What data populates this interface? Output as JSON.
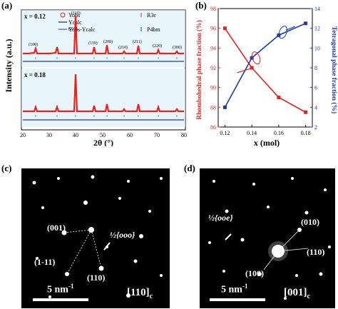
{
  "figure": {
    "panels": {
      "a": {
        "label": "(a)",
        "ylabel": "Intensity (a.u.)",
        "xlabel": "2θ (°)",
        "x_ticks": [
          "20",
          "30",
          "40",
          "50",
          "60",
          "70",
          "80"
        ],
        "legend": [
          "Yobs",
          "Ycalc",
          "Yobs-Ycalc",
          "R3c",
          "P4bm"
        ],
        "subpanel_labels": [
          "x = 0.12",
          "x = 0.18"
        ],
        "peak_labels": [
          "(100)",
          "(110)",
          "(111)",
          "(200)",
          "(210)",
          "(211)",
          "(220)",
          "(300)"
        ]
      },
      "b": {
        "label": "(b)",
        "ylabel_left": "Rhombohedral phase fraction (%)",
        "ylabel_right": "Tetragonal phase fraction (%)",
        "xlabel": "x (mol)",
        "colors": {
          "left": "#e8231f",
          "right": "#1e3aa8"
        }
      },
      "c": {
        "label": "(c)",
        "spots": [
          "(001)",
          "(1-11)",
          "(110)"
        ],
        "half_label": "½{ooo}",
        "scale": "5 nm",
        "scale_sup": "-1",
        "zone": "[110]",
        "zone_sub": "c"
      },
      "d": {
        "label": "(d)",
        "spots": [
          "(010)",
          "(110)",
          "(100)"
        ],
        "half_label": "½{ooe}",
        "scale": "5 nm",
        "scale_sup": "-1",
        "zone": "[001]",
        "zone_sub": "c"
      }
    }
  },
  "chart_data": [
    {
      "type": "line",
      "title": "",
      "xlabel": "x (mol)",
      "ylabel": "Rhombohedral phase fraction (%)",
      "x": [
        0.12,
        0.14,
        0.16,
        0.18
      ],
      "xlim": [
        0.115,
        0.185
      ],
      "x_ticks": [
        0.12,
        0.14,
        0.16,
        0.18
      ],
      "series": [
        {
          "axis": "left",
          "color": "#e8231f",
          "values": [
            96.0,
            92.0,
            89.0,
            87.5
          ]
        },
        {
          "axis": "right",
          "color": "#1e3aa8",
          "values": [
            4.0,
            9.0,
            11.3,
            12.5
          ]
        }
      ],
      "ylim_left": [
        86,
        98
      ],
      "yticks_left": [
        86,
        88,
        90,
        92,
        94,
        96,
        98
      ],
      "ylim_right": [
        2,
        14
      ],
      "yticks_right": [
        2,
        4,
        6,
        8,
        10,
        12,
        14
      ]
    }
  ]
}
